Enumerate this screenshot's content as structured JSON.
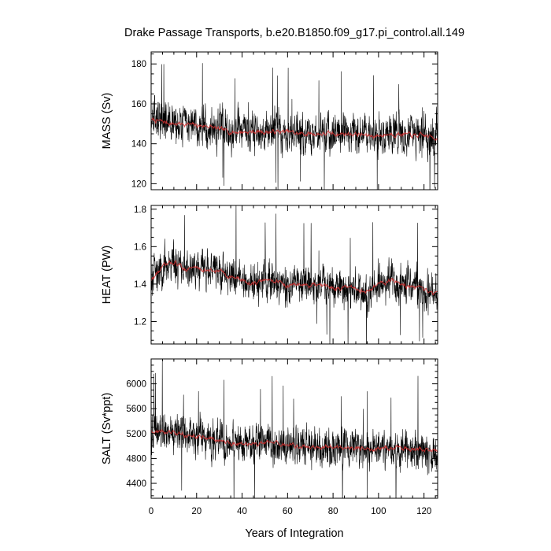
{
  "title": "Drake Passage Transports, b.e20.B1850.f09_g17.pi_control.all.149",
  "xlabel": "Years of Integration",
  "colors": {
    "raw": "#000000",
    "smoothed": "#d43030",
    "axis": "#000000"
  },
  "chart_data": [
    {
      "type": "line",
      "panel": "mass",
      "ylabel": "MASS (Sv)",
      "xlim": [
        0,
        126
      ],
      "ylim": [
        117,
        186
      ],
      "xticks": [
        0,
        20,
        40,
        60,
        80,
        100,
        120
      ],
      "xtick_labels": [
        "0",
        "20",
        "40",
        "60",
        "80",
        "100",
        "120"
      ],
      "yticks": [
        120,
        140,
        160,
        180
      ],
      "ytick_labels": [
        "120",
        "140",
        "160",
        "180"
      ],
      "series": [
        {
          "role": "monthly",
          "x": [
            0,
            5,
            10,
            15,
            20,
            25,
            30,
            35,
            40,
            45,
            50,
            55,
            60,
            65,
            70,
            75,
            80,
            85,
            90,
            95,
            100,
            105,
            110,
            115,
            120,
            126
          ],
          "y": [
            152,
            151,
            150,
            150,
            149,
            149,
            147,
            146,
            146,
            146,
            146,
            146,
            146,
            145,
            145,
            145,
            145,
            145,
            145,
            144,
            144,
            145,
            145,
            144,
            144,
            143
          ],
          "spread": 9.5
        },
        {
          "role": "running-mean",
          "x": [
            0,
            5,
            10,
            15,
            20,
            25,
            30,
            35,
            40,
            45,
            50,
            55,
            60,
            65,
            70,
            75,
            80,
            85,
            90,
            95,
            100,
            105,
            110,
            115,
            120,
            126
          ],
          "y": [
            152,
            151,
            150,
            150,
            149,
            149,
            147,
            146,
            146,
            146,
            146,
            146,
            146,
            145,
            145,
            145,
            145,
            145,
            145,
            144,
            144,
            145,
            145,
            144,
            144,
            143
          ]
        }
      ]
    },
    {
      "type": "line",
      "panel": "heat",
      "ylabel": "HEAT (PW)",
      "xlim": [
        0,
        126
      ],
      "ylim": [
        1.08,
        1.82
      ],
      "xticks": [
        0,
        20,
        40,
        60,
        80,
        100,
        120
      ],
      "xtick_labels": [
        "0",
        "20",
        "40",
        "60",
        "80",
        "100",
        "120"
      ],
      "yticks": [
        1.2,
        1.4,
        1.6,
        1.8
      ],
      "ytick_labels": [
        "1.2",
        "1.4",
        "1.6",
        "1.8"
      ],
      "series": [
        {
          "role": "monthly",
          "x": [
            0,
            5,
            10,
            15,
            20,
            25,
            30,
            35,
            40,
            45,
            50,
            55,
            60,
            65,
            70,
            75,
            80,
            85,
            90,
            95,
            100,
            105,
            110,
            115,
            120,
            126
          ],
          "y": [
            1.42,
            1.49,
            1.52,
            1.48,
            1.49,
            1.47,
            1.47,
            1.44,
            1.42,
            1.4,
            1.42,
            1.42,
            1.39,
            1.4,
            1.39,
            1.39,
            1.38,
            1.38,
            1.37,
            1.36,
            1.4,
            1.42,
            1.4,
            1.38,
            1.36,
            1.35
          ],
          "spread": 0.1
        },
        {
          "role": "running-mean",
          "x": [
            0,
            5,
            10,
            15,
            20,
            25,
            30,
            35,
            40,
            45,
            50,
            55,
            60,
            65,
            70,
            75,
            80,
            85,
            90,
            95,
            100,
            105,
            110,
            115,
            120,
            126
          ],
          "y": [
            1.42,
            1.49,
            1.52,
            1.48,
            1.49,
            1.47,
            1.47,
            1.44,
            1.42,
            1.4,
            1.42,
            1.42,
            1.39,
            1.4,
            1.39,
            1.39,
            1.38,
            1.38,
            1.37,
            1.36,
            1.4,
            1.42,
            1.4,
            1.38,
            1.36,
            1.35
          ]
        }
      ]
    },
    {
      "type": "line",
      "panel": "salt",
      "ylabel": "SALT (Sv*ppt)",
      "xlim": [
        0,
        126
      ],
      "ylim": [
        4160,
        6400
      ],
      "xticks": [
        0,
        20,
        40,
        60,
        80,
        100,
        120
      ],
      "xtick_labels": [
        "0",
        "20",
        "40",
        "60",
        "80",
        "100",
        "120"
      ],
      "yticks": [
        4400,
        4800,
        5200,
        5600,
        6000
      ],
      "ytick_labels": [
        "4400",
        "4800",
        "5200",
        "5600",
        "6000"
      ],
      "series": [
        {
          "role": "monthly",
          "x": [
            0,
            5,
            10,
            15,
            20,
            25,
            30,
            35,
            40,
            45,
            50,
            55,
            60,
            65,
            70,
            75,
            80,
            85,
            90,
            95,
            100,
            105,
            110,
            115,
            120,
            126
          ],
          "y": [
            5250,
            5230,
            5200,
            5180,
            5150,
            5130,
            5080,
            5050,
            5030,
            5030,
            5040,
            5030,
            5020,
            5000,
            4990,
            4980,
            4980,
            4980,
            4970,
            4950,
            4960,
            4970,
            4960,
            4950,
            4940,
            4920
          ],
          "spread": 300
        },
        {
          "role": "running-mean",
          "x": [
            0,
            5,
            10,
            15,
            20,
            25,
            30,
            35,
            40,
            45,
            50,
            55,
            60,
            65,
            70,
            75,
            80,
            85,
            90,
            95,
            100,
            105,
            110,
            115,
            120,
            126
          ],
          "y": [
            5250,
            5230,
            5200,
            5180,
            5150,
            5130,
            5080,
            5050,
            5030,
            5030,
            5040,
            5030,
            5020,
            5000,
            4990,
            4980,
            4980,
            4980,
            4970,
            4950,
            4960,
            4970,
            4960,
            4950,
            4940,
            4920
          ]
        }
      ]
    }
  ]
}
